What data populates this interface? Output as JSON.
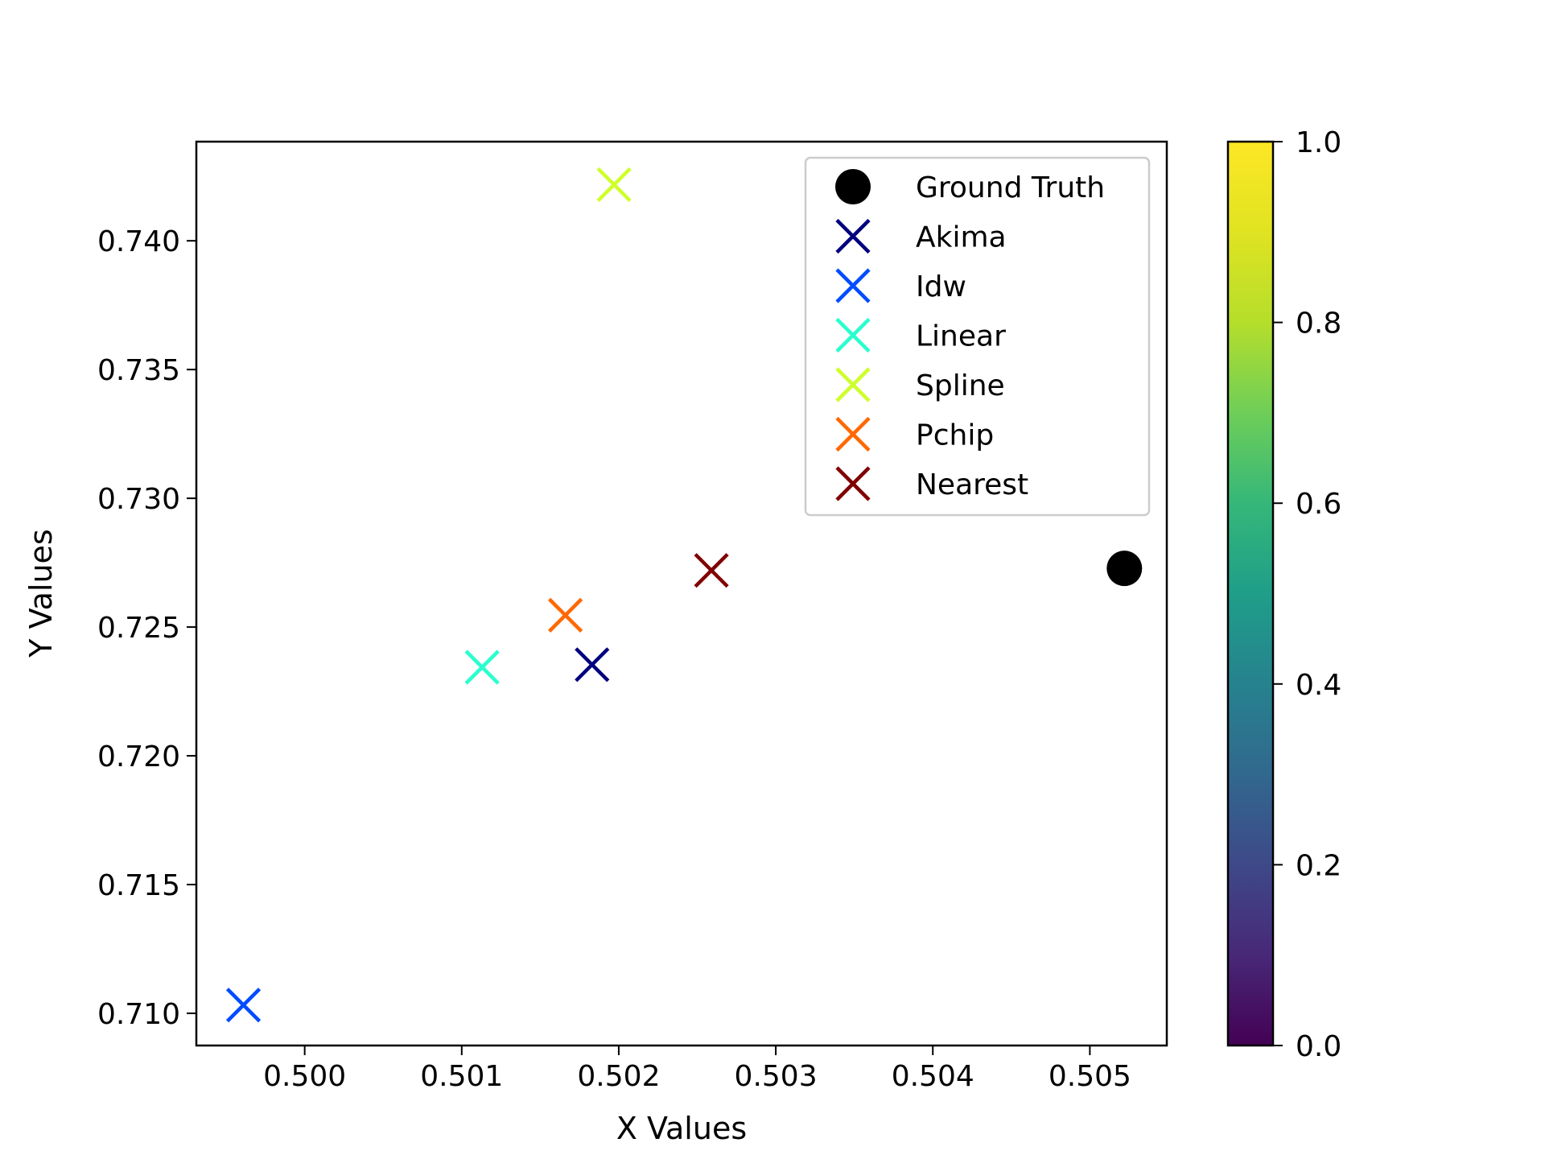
{
  "chart_data": {
    "type": "scatter",
    "title": "",
    "xlabel": "X Values",
    "ylabel": "Y Values",
    "xlim": [
      0.49931,
      0.50549
    ],
    "ylim": [
      0.70875,
      0.74385
    ],
    "xticks": [
      "0.500",
      "0.501",
      "0.502",
      "0.503",
      "0.504",
      "0.505"
    ],
    "yticks": [
      "0.710",
      "0.715",
      "0.720",
      "0.725",
      "0.730",
      "0.735",
      "0.740"
    ],
    "grid": false,
    "legend_position": "top-right",
    "series": [
      {
        "name": "Ground Truth",
        "marker": "circle",
        "color": "#000000",
        "x": 0.50522,
        "y": 0.72728
      },
      {
        "name": "Akima",
        "marker": "x",
        "color": "#00007f",
        "x": 0.50183,
        "y": 0.72354
      },
      {
        "name": "Idw",
        "marker": "x",
        "color": "#004cff",
        "x": 0.49961,
        "y": 0.71032
      },
      {
        "name": "Linear",
        "marker": "x",
        "color": "#29ffce",
        "x": 0.50113,
        "y": 0.72344
      },
      {
        "name": "Spline",
        "marker": "x",
        "color": "#ceff29",
        "x": 0.50197,
        "y": 0.74218
      },
      {
        "name": "Pchip",
        "marker": "x",
        "color": "#ff6800",
        "x": 0.50166,
        "y": 0.72546
      },
      {
        "name": "Nearest",
        "marker": "x",
        "color": "#7f0000",
        "x": 0.50259,
        "y": 0.7272
      }
    ],
    "colorbar": {
      "colormap": "viridis",
      "range": [
        0.0,
        1.0
      ],
      "ticks": [
        "0.0",
        "0.2",
        "0.4",
        "0.6",
        "0.8",
        "1.0"
      ]
    }
  }
}
